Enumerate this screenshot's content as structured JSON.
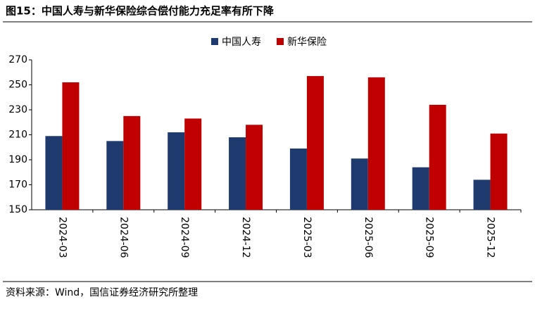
{
  "chart_data": {
    "type": "bar",
    "title": "图15：中国人寿与新华保险综合偿付能力充足率有所下降",
    "source": "资料来源：Wind，国信证券经济研究所整理",
    "categories": [
      "2024-03",
      "2024-06",
      "2024-09",
      "2024-12",
      "2025-03",
      "2025-06",
      "2025-09",
      "2025-12"
    ],
    "series": [
      {
        "name": "中国人寿",
        "color": "#1f3a6e",
        "values": [
          209,
          205,
          212,
          208,
          199,
          191,
          184,
          174
        ]
      },
      {
        "name": "新华保险",
        "color": "#c00000",
        "values": [
          252,
          225,
          223,
          218,
          257,
          256,
          234,
          211
        ]
      }
    ],
    "ylim": [
      150,
      270
    ],
    "yticks": [
      150,
      170,
      190,
      210,
      230,
      250,
      270
    ],
    "grid": false,
    "legend": "top"
  }
}
